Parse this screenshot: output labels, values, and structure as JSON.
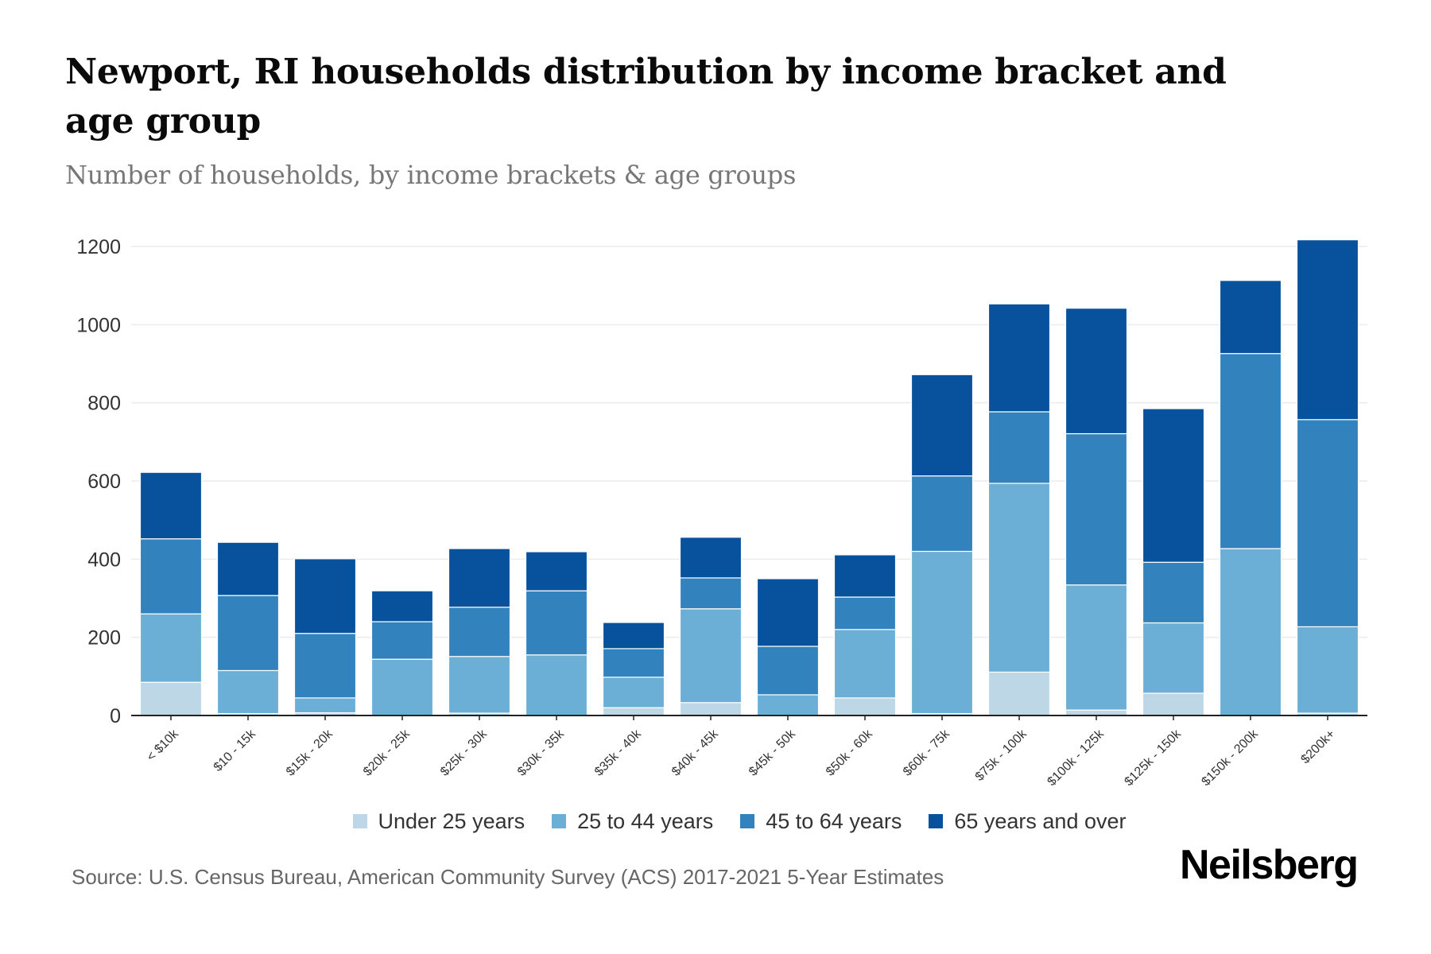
{
  "header": {
    "title": "Newport, RI households distribution by income bracket and age group",
    "subtitle": "Number of households, by income brackets & age groups"
  },
  "footer": {
    "source": "Source: U.S. Census Bureau, American Community Survey (ACS) 2017-2021 5-Year Estimates",
    "logo": "Neilsberg"
  },
  "chart_data": {
    "type": "bar",
    "stacked": true,
    "title": "Newport, RI households distribution by income bracket and age group",
    "subtitle": "Number of households, by income brackets & age groups",
    "xlabel": "",
    "ylabel": "",
    "ylim": [
      0,
      1200
    ],
    "yticks": [
      0,
      200,
      400,
      600,
      800,
      1000,
      1200
    ],
    "grid": true,
    "legend_position": "bottom-center",
    "categories": [
      "< $10k",
      "$10 - 15k",
      "$15k - 20k",
      "$20k - 25k",
      "$25k - 30k",
      "$30k - 35k",
      "$35k - 40k",
      "$40k - 45k",
      "$45k - 50k",
      "$50k - 60k",
      "$60k - 75k",
      "$75k - 100k",
      "$100k - 125k",
      "$125k - 150k",
      "$150k - 200k",
      "$200k+"
    ],
    "series": [
      {
        "name": "Under 25 years",
        "color": "#BDD7E7",
        "values": [
          85,
          5,
          7,
          0,
          6,
          0,
          20,
          33,
          0,
          45,
          5,
          111,
          14,
          57,
          0,
          6
        ]
      },
      {
        "name": "25 to 44 years",
        "color": "#6BAED6",
        "values": [
          175,
          110,
          38,
          144,
          145,
          155,
          78,
          240,
          53,
          175,
          415,
          483,
          320,
          180,
          427,
          221
        ]
      },
      {
        "name": "45 to 64 years",
        "color": "#3182BD",
        "values": [
          192,
          192,
          165,
          96,
          126,
          164,
          73,
          79,
          124,
          83,
          193,
          183,
          387,
          155,
          499,
          530
        ]
      },
      {
        "name": "65 years and over",
        "color": "#08519C",
        "values": [
          170,
          136,
          191,
          79,
          150,
          100,
          67,
          104,
          173,
          108,
          259,
          276,
          321,
          393,
          187,
          460
        ]
      }
    ]
  }
}
